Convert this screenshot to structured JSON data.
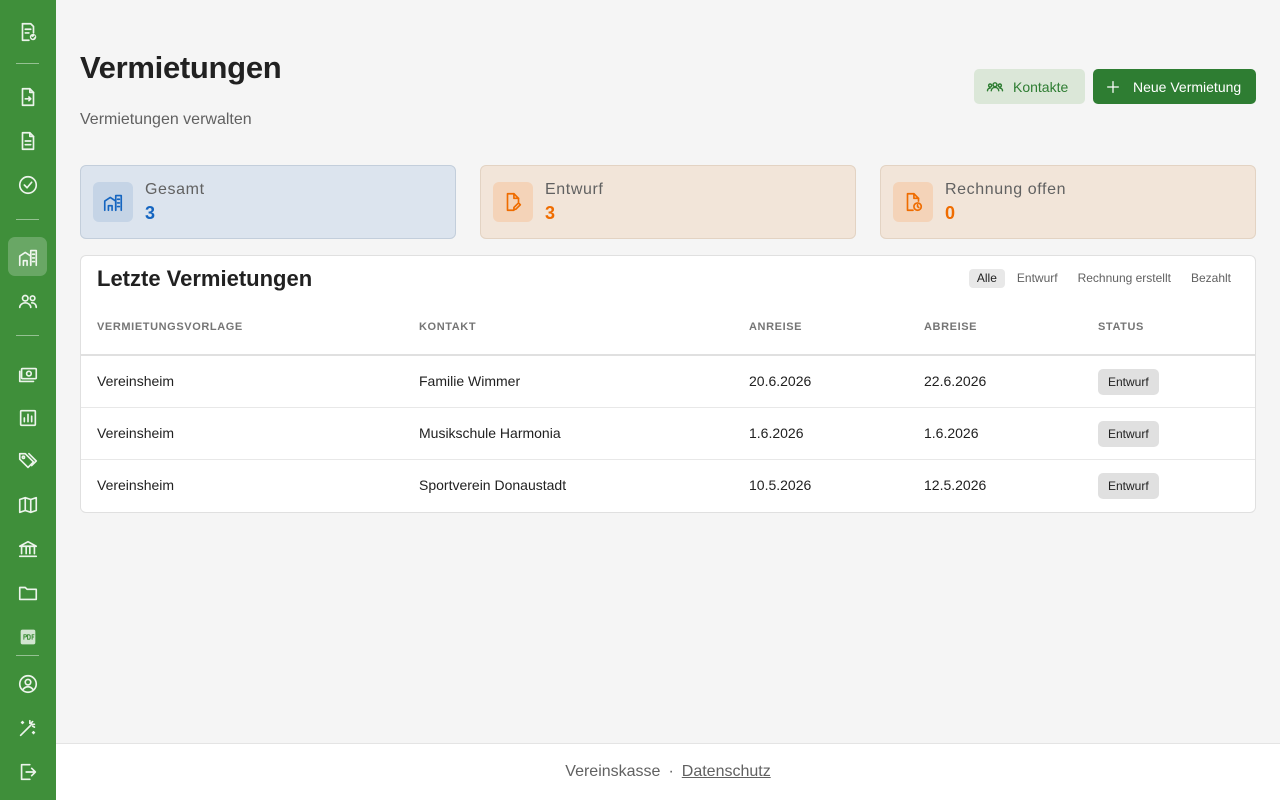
{
  "sidebar": {
    "items": [
      {
        "icon": "logo-document-check-icon"
      },
      {
        "icon": "document-arrow-icon"
      },
      {
        "icon": "document-lines-icon"
      },
      {
        "icon": "check-circle-icon"
      },
      {
        "icon": "buildings-icon",
        "active": true
      },
      {
        "icon": "people-icon"
      },
      {
        "icon": "cash-icon"
      },
      {
        "icon": "chart-icon"
      },
      {
        "icon": "tags-icon"
      },
      {
        "icon": "map-icon"
      },
      {
        "icon": "bank-icon"
      },
      {
        "icon": "folder-icon"
      },
      {
        "icon": "pdf-icon"
      },
      {
        "icon": "account-circle-icon"
      },
      {
        "icon": "magic-wand-icon"
      },
      {
        "icon": "logout-icon"
      }
    ]
  },
  "header": {
    "title": "Vermietungen",
    "subtitle": "Vermietungen verwalten",
    "contacts_label": "Kontakte",
    "new_label": "Neue Vermietung"
  },
  "stats": {
    "total": {
      "label": "Gesamt",
      "value": "3"
    },
    "draft": {
      "label": "Entwurf",
      "value": "3"
    },
    "invoice_open": {
      "label": "Rechnung offen",
      "value": "0"
    }
  },
  "recent": {
    "title": "Letzte Vermietungen",
    "filters": [
      "Alle",
      "Entwurf",
      "Rechnung erstellt",
      "Bezahlt"
    ],
    "active_filter": "Alle",
    "columns": [
      "VERMIETUNGSVORLAGE",
      "KONTAKT",
      "ANREISE",
      "ABREISE",
      "STATUS"
    ],
    "rows": [
      {
        "template": "Vereinsheim",
        "contact": "Familie Wimmer",
        "arrival": "20.6.2026",
        "departure": "22.6.2026",
        "status": "Entwurf"
      },
      {
        "template": "Vereinsheim",
        "contact": "Musikschule Harmonia",
        "arrival": "1.6.2026",
        "departure": "1.6.2026",
        "status": "Entwurf"
      },
      {
        "template": "Vereinsheim",
        "contact": "Sportverein Donaustadt",
        "arrival": "10.5.2026",
        "departure": "12.5.2026",
        "status": "Entwurf"
      }
    ]
  },
  "footer": {
    "brand": "Vereinskasse",
    "separator": "·",
    "privacy_label": "Datenschutz"
  },
  "colors": {
    "sidebar": "#3f8f3a",
    "primary": "#2e7d32",
    "blue": "#1565c0",
    "orange": "#ef6c00"
  }
}
